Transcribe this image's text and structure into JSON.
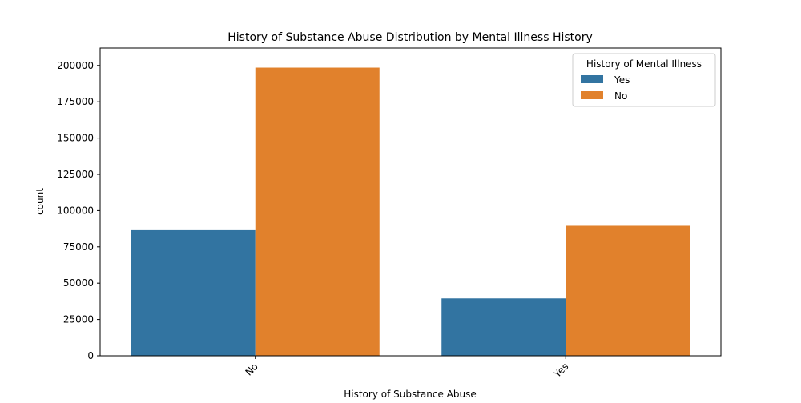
{
  "chart_data": {
    "type": "bar",
    "title": "History of Substance Abuse Distribution by Mental Illness History",
    "xlabel": "History of Substance Abuse",
    "ylabel": "count",
    "categories": [
      "No",
      "Yes"
    ],
    "series": [
      {
        "name": "Yes",
        "color": "#3274a1",
        "values": [
          86500,
          39500
        ]
      },
      {
        "name": "No",
        "color": "#e1812c",
        "values": [
          198500,
          89500
        ]
      }
    ],
    "ylim": [
      0,
      212000
    ],
    "yticks": [
      0,
      25000,
      50000,
      75000,
      100000,
      125000,
      150000,
      175000,
      200000
    ],
    "legend": {
      "title": "History of Mental Illness",
      "placement": "top-right"
    },
    "grid": false
  }
}
